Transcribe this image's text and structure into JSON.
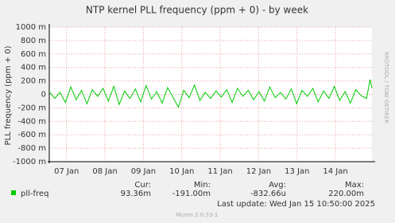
{
  "chart_data": {
    "type": "line",
    "title": "NTP kernel PLL frequency (ppm + 0) - by week",
    "y_label": "PLL frequency (ppm + 0)",
    "side_label": "RRDTOOL / TOBI OETIKER",
    "footer": "Munin 2.0.33-1",
    "grid": true,
    "xlim": [
      -0.45,
      7.95
    ],
    "xticks": [
      {
        "value": 0,
        "label": "07 Jan"
      },
      {
        "value": 1,
        "label": "08 Jan"
      },
      {
        "value": 2,
        "label": "09 Jan"
      },
      {
        "value": 3,
        "label": "10 Jan"
      },
      {
        "value": 4,
        "label": "11 Jan"
      },
      {
        "value": 5,
        "label": "12 Jan"
      },
      {
        "value": 6,
        "label": "13 Jan"
      },
      {
        "value": 7,
        "label": "14 Jan"
      }
    ],
    "ylim": [
      -1000,
      1000
    ],
    "yticks": [
      {
        "value": -1000,
        "label": "-1000 m"
      },
      {
        "value": -800,
        "label": "-800 m"
      },
      {
        "value": -600,
        "label": "-600 m"
      },
      {
        "value": -400,
        "label": "-400 m"
      },
      {
        "value": -200,
        "label": "-200 m"
      },
      0,
      {
        "value": 200,
        "label": "200 m"
      },
      {
        "value": 400,
        "label": "400 m"
      },
      {
        "value": 600,
        "label": "600 m"
      },
      {
        "value": 800,
        "label": "800 m"
      },
      {
        "value": 1000,
        "label": "1000 m"
      }
    ],
    "x": [
      -0.45,
      -0.31,
      -0.17,
      -0.03,
      0.11,
      0.25,
      0.39,
      0.53,
      0.67,
      0.81,
      0.95,
      1.09,
      1.23,
      1.37,
      1.51,
      1.65,
      1.79,
      1.93,
      2.07,
      2.21,
      2.35,
      2.49,
      2.63,
      2.77,
      2.91,
      3.05,
      3.19,
      3.33,
      3.47,
      3.61,
      3.75,
      3.89,
      4.03,
      4.17,
      4.31,
      4.45,
      4.59,
      4.73,
      4.87,
      5.01,
      5.15,
      5.29,
      5.43,
      5.57,
      5.71,
      5.85,
      5.99,
      6.13,
      6.27,
      6.41,
      6.55,
      6.69,
      6.83,
      6.97,
      7.11,
      7.25,
      7.39,
      7.53,
      7.67,
      7.81,
      7.9,
      7.95
    ],
    "series": [
      {
        "name": "pll-freq",
        "color": "#00cc00",
        "values": [
          40,
          -60,
          30,
          -120,
          110,
          -80,
          60,
          -140,
          70,
          -30,
          90,
          -100,
          120,
          -150,
          50,
          -60,
          80,
          -110,
          130,
          -70,
          40,
          -130,
          100,
          -40,
          -191,
          60,
          -50,
          140,
          -90,
          30,
          -60,
          50,
          -40,
          70,
          -120,
          90,
          -30,
          60,
          -80,
          40,
          -100,
          110,
          -50,
          30,
          -70,
          80,
          -140,
          60,
          -30,
          90,
          -110,
          50,
          -60,
          120,
          -90,
          40,
          -130,
          70,
          -20,
          -60,
          220,
          93.36
        ]
      }
    ],
    "summary": {
      "headers": [
        "Cur:",
        "Min:",
        "Avg:",
        "Max:"
      ],
      "values": [
        "93.36m",
        "-191.00m",
        "-832.66u",
        "220.00m"
      ]
    },
    "last_update": "Last update:  Wed Jan 15 10:50:00 2025"
  }
}
